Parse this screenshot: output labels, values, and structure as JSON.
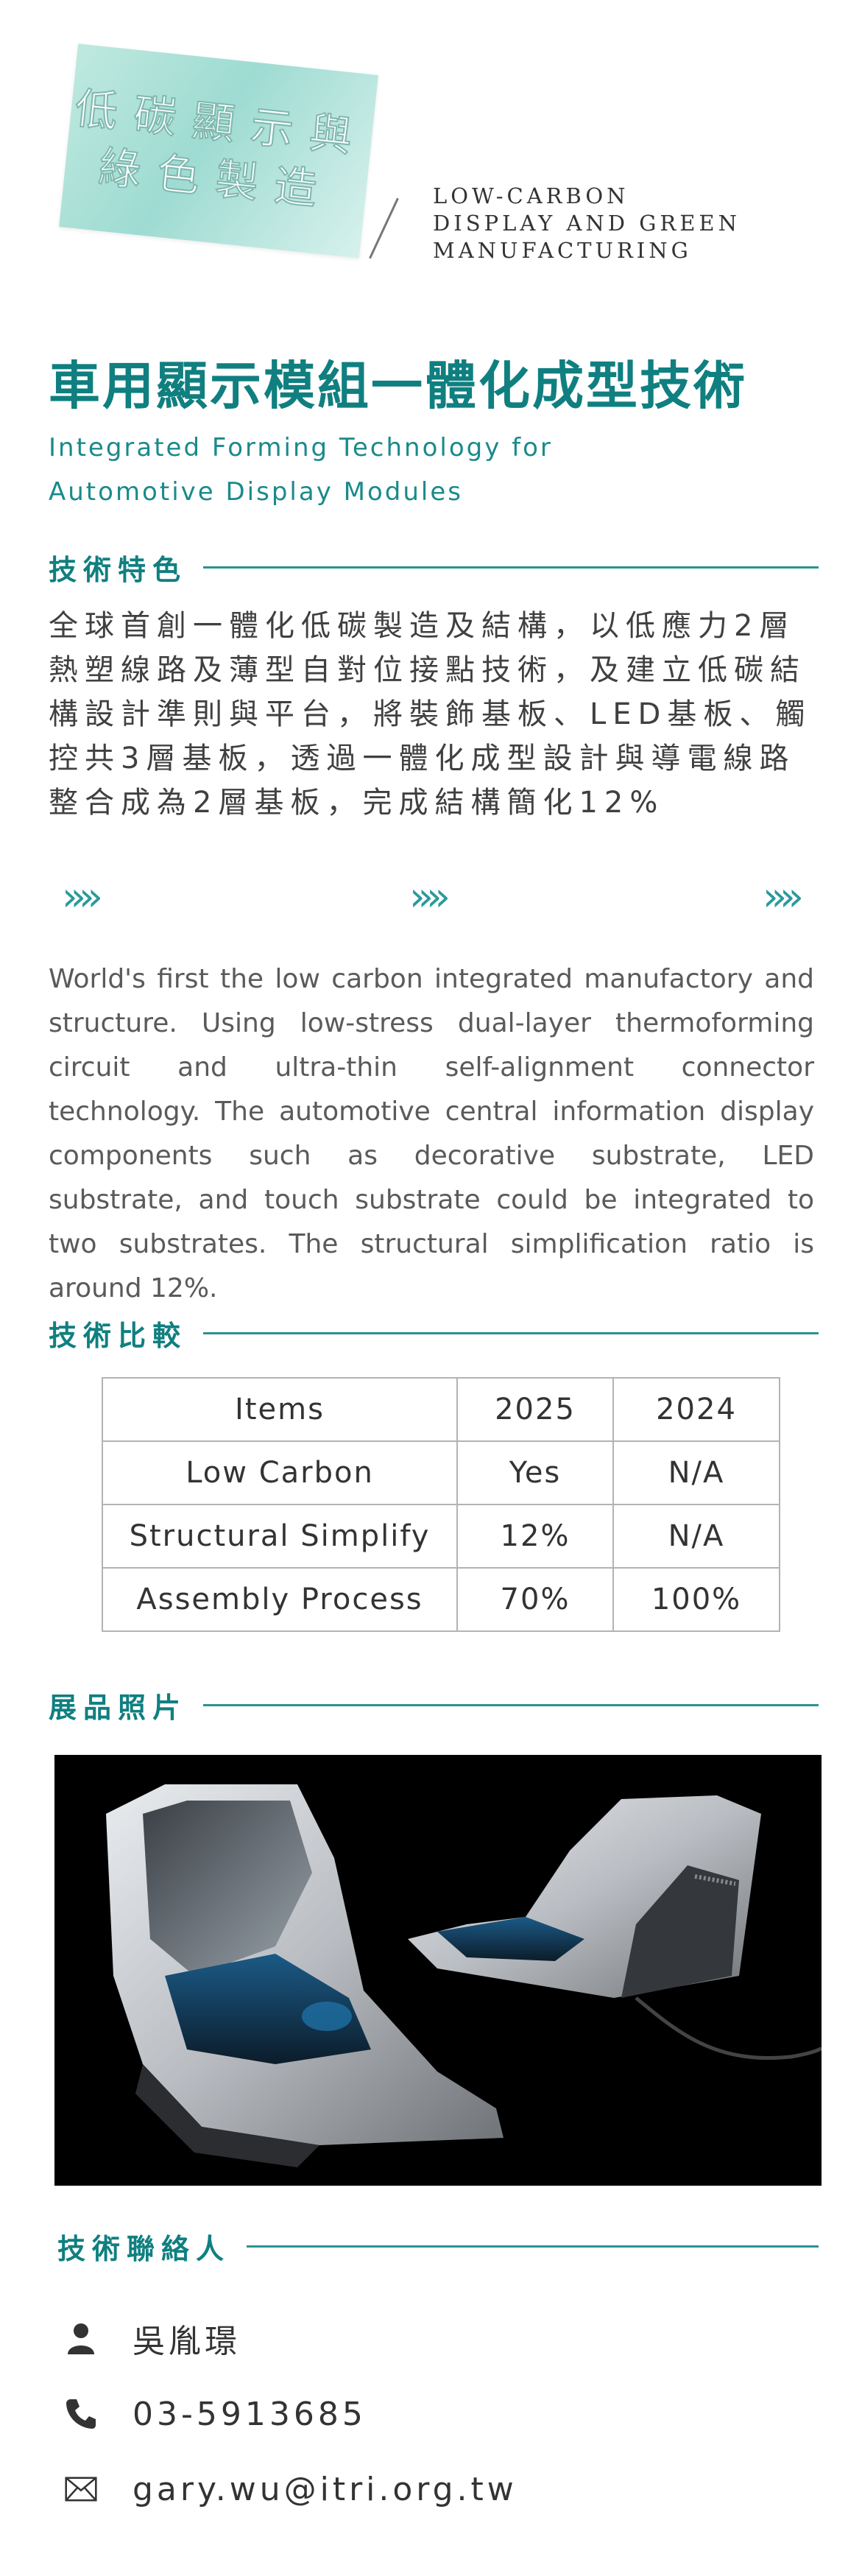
{
  "header": {
    "badge_lines": [
      "低碳顯示與",
      "綠色製造"
    ],
    "en_lines": [
      "LOW-CARBON",
      "DISPLAY AND GREEN",
      "MANUFACTURING"
    ]
  },
  "title": {
    "zh": "車用顯示模組一體化成型技術",
    "en_lines": [
      "Integrated Forming Technology for",
      "Automotive Display Modules"
    ]
  },
  "features": {
    "heading": "技術特色",
    "zh_text": "全球首創一體化低碳製造及結構，以低應力2層熱塑線路及薄型自對位接點技術，及建立低碳結構設計準則與平台，將裝飾基板、LED基板、觸控共3層基板，透過一體化成型設計與導電線路整合成為2層基板，完成結構簡化12%",
    "chevron": "»»",
    "en_text": "World's first the low carbon integrated manufactory and structure. Using low-stress dual-layer thermoforming circuit and ultra-thin self-alignment connector technology. The automotive central information display components such as decorative substrate, LED substrate, and touch substrate could be integrated to two substrates. The structural simplification ratio is around 12%."
  },
  "comparison": {
    "heading": "技術比較",
    "headers": [
      "Items",
      "2025",
      "2024"
    ],
    "rows": [
      [
        "Low Carbon",
        "Yes",
        "N/A"
      ],
      [
        "Structural Simplify",
        "12%",
        "N/A"
      ],
      [
        "Assembly Process",
        "70%",
        "100%"
      ]
    ]
  },
  "photo": {
    "heading": "展品照片"
  },
  "contact": {
    "heading": "技術聯絡人",
    "name": "吳胤璟",
    "phone": "03-5913685",
    "email": "gary.wu@itri.org.tw"
  },
  "colors": {
    "accent": "#107f80",
    "line": "#2a9293",
    "badge": "#a6ddd4"
  }
}
